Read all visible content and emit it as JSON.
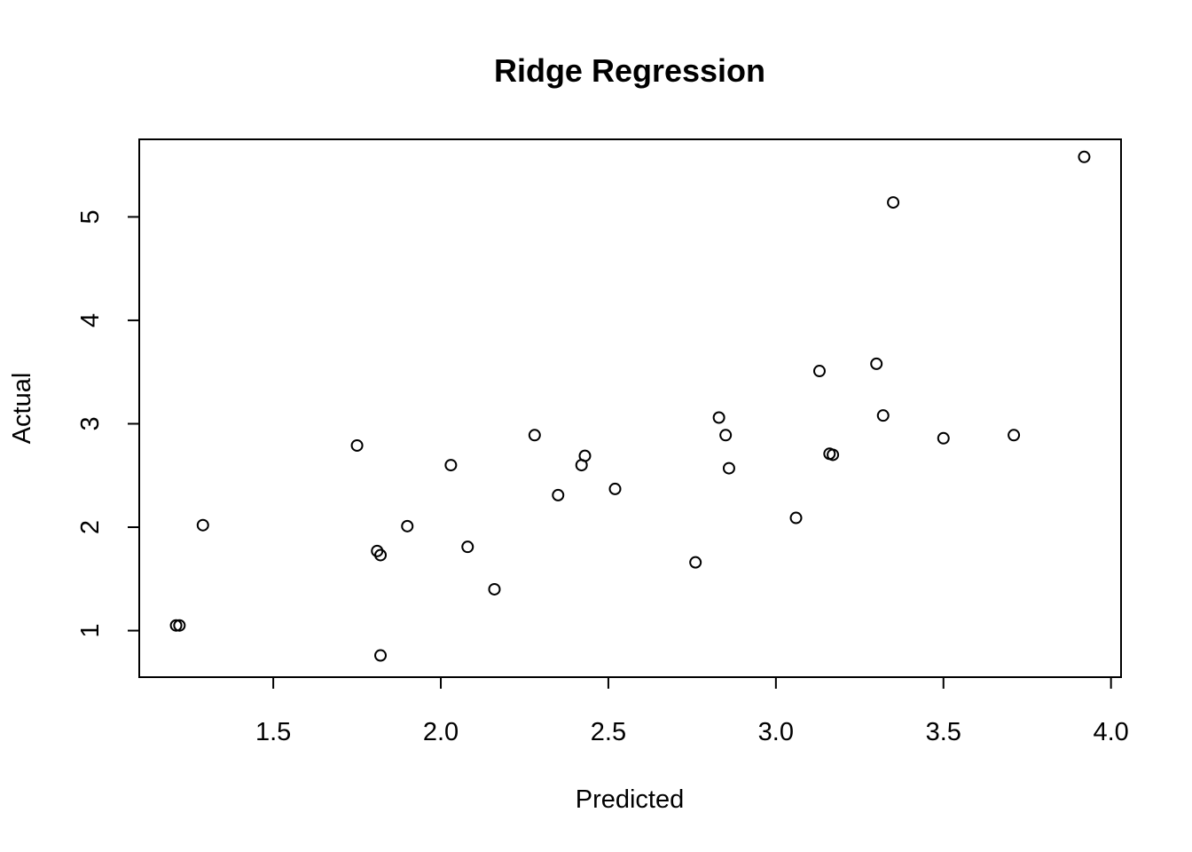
{
  "chart_data": {
    "type": "scatter",
    "title": "Ridge Regression",
    "xlabel": "Predicted",
    "ylabel": "Actual",
    "xlim": [
      1.1,
      4.03
    ],
    "ylim": [
      0.55,
      5.75
    ],
    "x_ticks": [
      1.5,
      2.0,
      2.5,
      3.0,
      3.5,
      4.0
    ],
    "x_tick_labels": [
      "1.5",
      "2.0",
      "2.5",
      "3.0",
      "3.5",
      "4.0"
    ],
    "y_ticks": [
      1,
      2,
      3,
      4,
      5
    ],
    "y_tick_labels": [
      "1",
      "2",
      "3",
      "4",
      "5"
    ],
    "grid": false,
    "legend": "none",
    "points": [
      {
        "x": 1.21,
        "y": 1.05
      },
      {
        "x": 1.22,
        "y": 1.05
      },
      {
        "x": 1.29,
        "y": 2.02
      },
      {
        "x": 1.75,
        "y": 2.79
      },
      {
        "x": 1.81,
        "y": 1.77
      },
      {
        "x": 1.82,
        "y": 1.73
      },
      {
        "x": 1.82,
        "y": 0.76
      },
      {
        "x": 1.9,
        "y": 2.01
      },
      {
        "x": 2.03,
        "y": 2.6
      },
      {
        "x": 2.08,
        "y": 1.81
      },
      {
        "x": 2.16,
        "y": 1.4
      },
      {
        "x": 2.28,
        "y": 2.89
      },
      {
        "x": 2.35,
        "y": 2.31
      },
      {
        "x": 2.42,
        "y": 2.6
      },
      {
        "x": 2.43,
        "y": 2.69
      },
      {
        "x": 2.52,
        "y": 2.37
      },
      {
        "x": 2.76,
        "y": 1.66
      },
      {
        "x": 2.83,
        "y": 3.06
      },
      {
        "x": 2.85,
        "y": 2.89
      },
      {
        "x": 2.86,
        "y": 2.57
      },
      {
        "x": 3.06,
        "y": 2.09
      },
      {
        "x": 3.13,
        "y": 3.51
      },
      {
        "x": 3.16,
        "y": 2.71
      },
      {
        "x": 3.17,
        "y": 2.7
      },
      {
        "x": 3.3,
        "y": 3.58
      },
      {
        "x": 3.32,
        "y": 3.08
      },
      {
        "x": 3.35,
        "y": 5.14
      },
      {
        "x": 3.5,
        "y": 2.86
      },
      {
        "x": 3.71,
        "y": 2.89
      },
      {
        "x": 3.92,
        "y": 5.58
      }
    ]
  }
}
